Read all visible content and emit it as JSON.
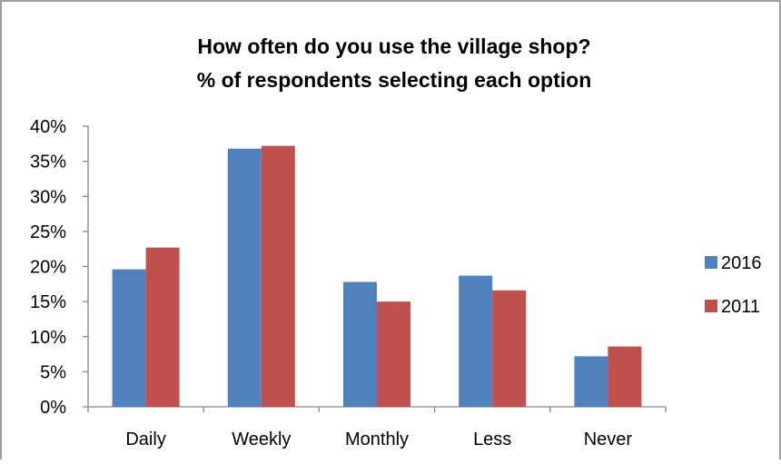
{
  "chart_data": {
    "type": "bar",
    "title": "How often do you use the village shop?",
    "subtitle": "% of respondents selecting each option",
    "xlabel": "",
    "ylabel": "",
    "categories": [
      "Daily",
      "Weekly",
      "Monthly",
      "Less",
      "Never"
    ],
    "series": [
      {
        "name": "2016",
        "color": "#4F81BD",
        "values": [
          19.6,
          36.8,
          17.8,
          18.7,
          7.2
        ]
      },
      {
        "name": "2011",
        "color": "#C0504D",
        "values": [
          22.7,
          37.2,
          15.0,
          16.6,
          8.6
        ]
      }
    ],
    "ylim": [
      0,
      40
    ],
    "yticks": [
      "0%",
      "5%",
      "10%",
      "15%",
      "20%",
      "25%",
      "30%",
      "35%",
      "40%"
    ],
    "grid": false,
    "legend_position": "right"
  }
}
